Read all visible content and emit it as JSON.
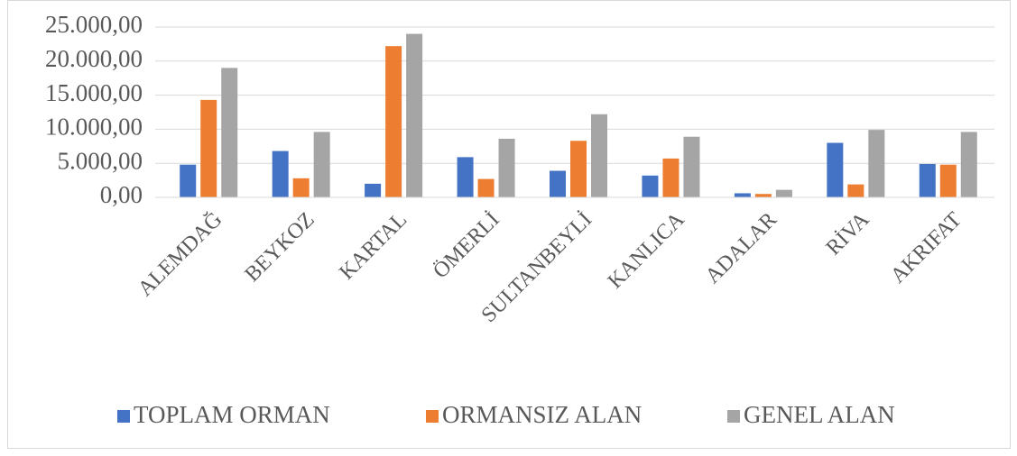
{
  "chart_data": {
    "type": "bar",
    "categories": [
      "ALEMDAĞ",
      "BEYKOZ",
      "KARTAL",
      "ÖMERLİ",
      "SULTANBEYLİ",
      "KANLICA",
      "ADALAR",
      "RİVA",
      "AKRIFAT"
    ],
    "series": [
      {
        "name": "TOPLAM ORMAN",
        "color": "#4472c4",
        "values": [
          4800,
          6800,
          2000,
          5900,
          3900,
          3200,
          600,
          8000,
          4900
        ]
      },
      {
        "name": "ORMANSIZ ALAN",
        "color": "#ed7d31",
        "values": [
          14300,
          2800,
          22200,
          2700,
          8300,
          5700,
          500,
          1900,
          4800
        ]
      },
      {
        "name": "GENEL ALAN",
        "color": "#a5a5a5",
        "values": [
          19000,
          9600,
          24000,
          8600,
          12200,
          8900,
          1100,
          9900,
          9600
        ]
      }
    ],
    "ylim": [
      0,
      25000
    ],
    "yticks": [
      {
        "value": 0,
        "label": "0,00"
      },
      {
        "value": 5000,
        "label": "5.000,00"
      },
      {
        "value": 10000,
        "label": "10.000,00"
      },
      {
        "value": 15000,
        "label": "15.000,00"
      },
      {
        "value": 20000,
        "label": "20.000,00"
      },
      {
        "value": 25000,
        "label": "25.000,00"
      }
    ],
    "grid": true,
    "legend": "bottom"
  }
}
